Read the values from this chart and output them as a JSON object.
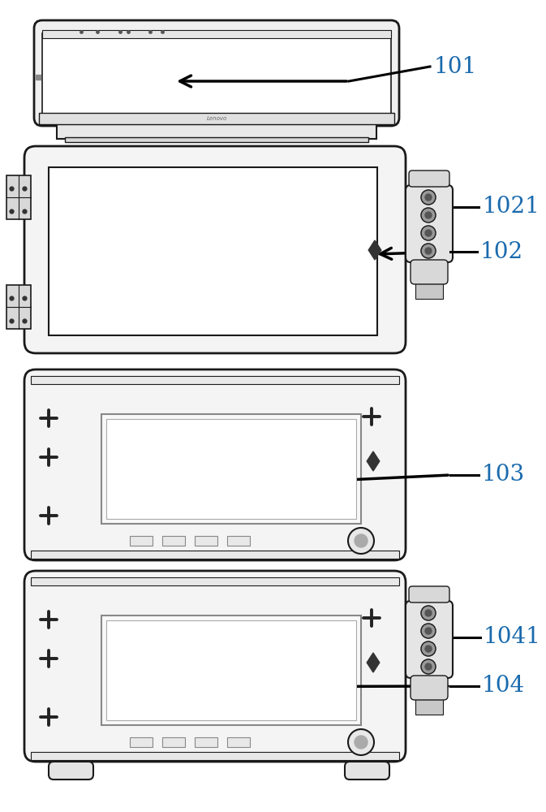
{
  "bg_color": "#ffffff",
  "label_color": "#1a6aad",
  "line_color": "#1a1a1a",
  "label_fontsize": 20,
  "figsize": [
    6.73,
    10.0
  ],
  "dpi": 100
}
